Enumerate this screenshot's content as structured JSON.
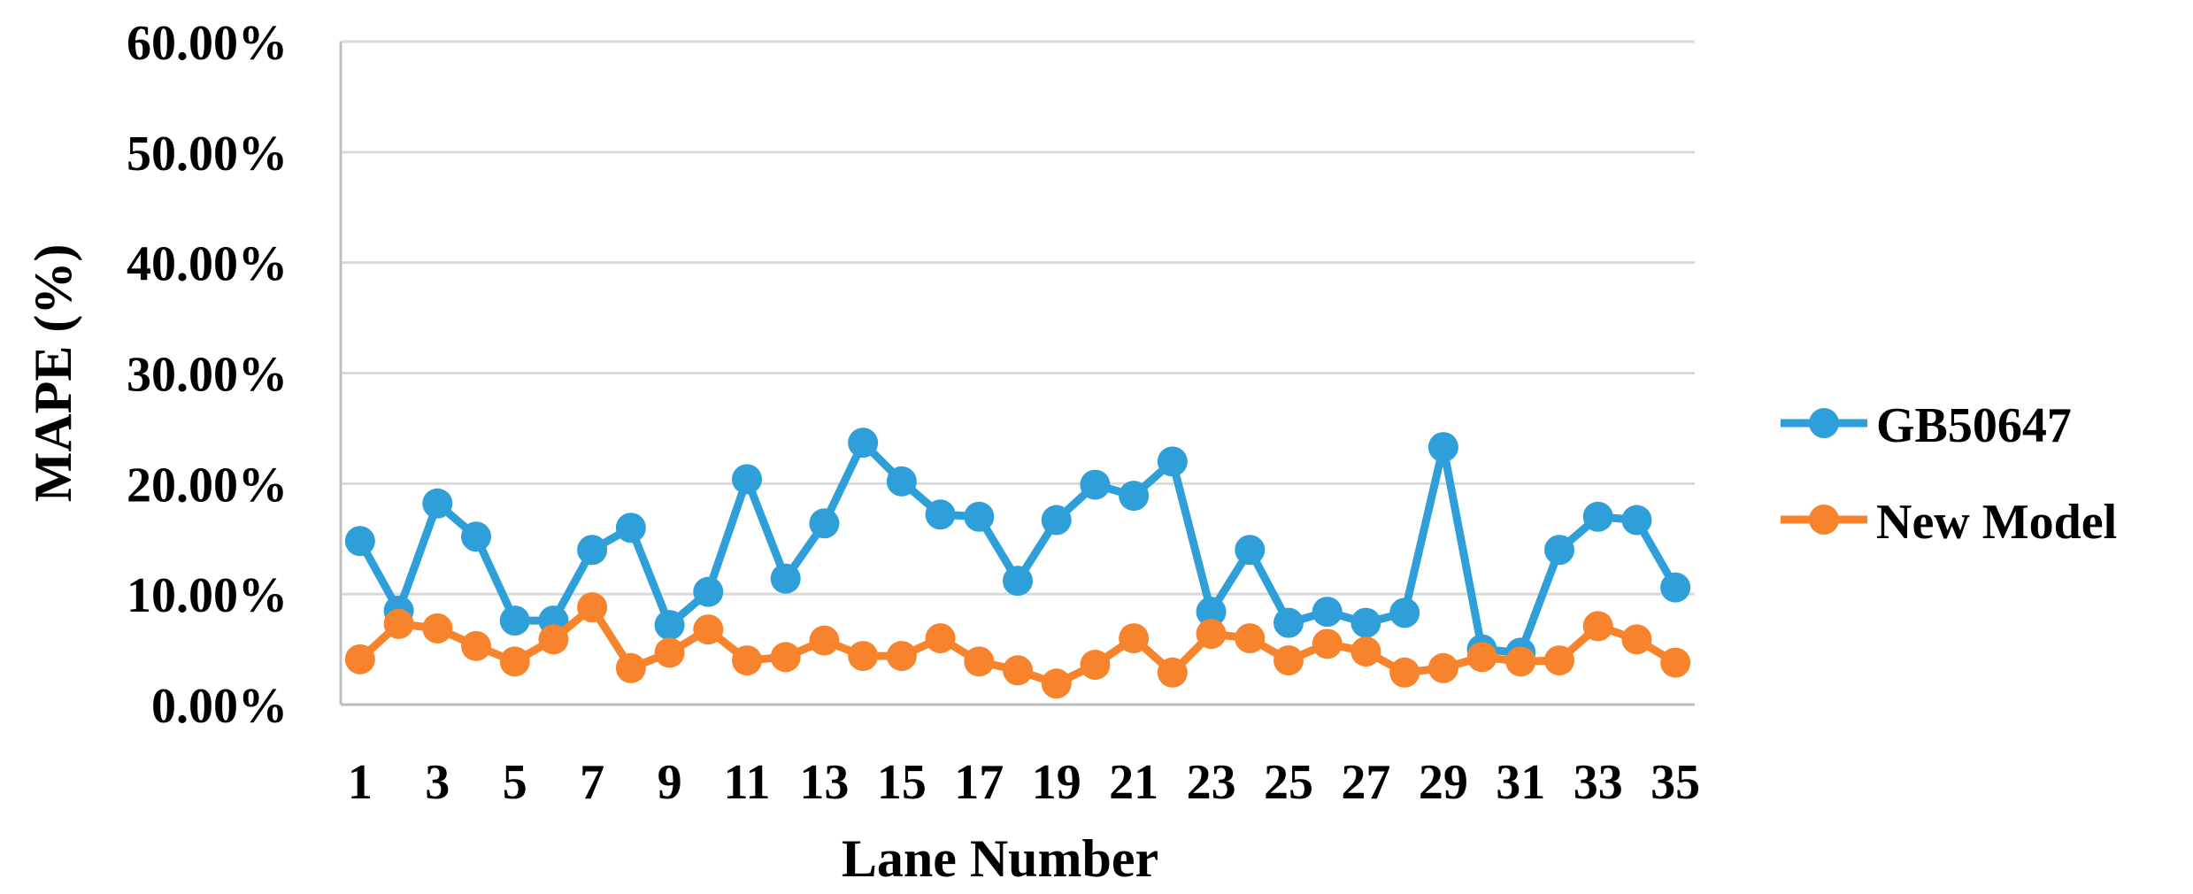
{
  "chart_data": {
    "type": "line",
    "title": "",
    "xlabel": "Lane Number",
    "ylabel": "MAPE (%)",
    "ylim": [
      0,
      60
    ],
    "y_ticks": [
      "0.00%",
      "10.00%",
      "20.00%",
      "30.00%",
      "40.00%",
      "50.00%",
      "60.00%"
    ],
    "x_tick_labels": [
      "1",
      "3",
      "5",
      "7",
      "9",
      "11",
      "13",
      "15",
      "17",
      "19",
      "21",
      "23",
      "25",
      "27",
      "29",
      "31",
      "33",
      "35"
    ],
    "x": [
      1,
      2,
      3,
      4,
      5,
      6,
      7,
      8,
      9,
      10,
      11,
      12,
      13,
      14,
      15,
      16,
      17,
      18,
      19,
      20,
      21,
      22,
      23,
      24,
      25,
      26,
      27,
      28,
      29,
      30,
      31,
      32,
      33,
      34,
      35
    ],
    "grid": true,
    "legend_position": "right",
    "series": [
      {
        "name": "GB50647",
        "color": "#2E9FD8",
        "values": [
          14.8,
          8.5,
          18.2,
          15.2,
          7.6,
          7.6,
          14.0,
          16.0,
          7.2,
          10.2,
          20.4,
          11.4,
          16.4,
          23.7,
          20.2,
          17.2,
          17.0,
          11.2,
          16.7,
          19.9,
          18.9,
          22.0,
          8.4,
          14.0,
          7.4,
          8.4,
          7.4,
          8.3,
          23.3,
          5.0,
          4.7,
          14.0,
          17.0,
          16.7,
          10.6
        ]
      },
      {
        "name": "New Model",
        "color": "#F7842D",
        "values": [
          4.1,
          7.3,
          6.9,
          5.3,
          3.9,
          5.9,
          8.8,
          3.3,
          4.7,
          6.8,
          4.0,
          4.3,
          5.8,
          4.4,
          4.4,
          6.0,
          3.9,
          3.1,
          1.9,
          3.6,
          6.0,
          2.9,
          6.4,
          6.0,
          4.0,
          5.5,
          4.8,
          2.9,
          3.3,
          4.3,
          3.9,
          4.0,
          7.1,
          5.9,
          3.8
        ]
      }
    ]
  }
}
